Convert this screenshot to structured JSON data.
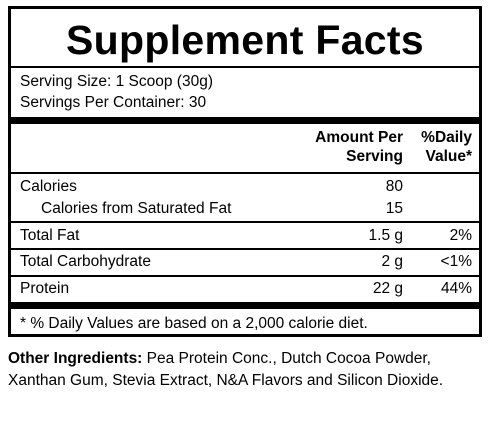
{
  "title": "Supplement Facts",
  "serving_size": "Serving Size: 1 Scoop (30g)",
  "servings_per_container": "Servings Per Container: 30",
  "header": {
    "amount_line1": "Amount Per",
    "amount_line2": "Serving",
    "dv_line1": "%Daily",
    "dv_line2": "Value*"
  },
  "rows": [
    {
      "name": "Calories",
      "amount": "80",
      "dv": ""
    },
    {
      "name": "Calories from Saturated Fat",
      "amount": "15",
      "dv": ""
    },
    {
      "name": "Total Fat",
      "amount": "1.5 g",
      "dv": "2%"
    },
    {
      "name": "Total Carbohydrate",
      "amount": "2 g",
      "dv": "<1%"
    },
    {
      "name": "Protein",
      "amount": "22 g",
      "dv": "44%"
    }
  ],
  "footnote": "* % Daily Values are based on a 2,000 calorie diet.",
  "ingredients": {
    "label": "Other Ingredients:",
    "text": " Pea Protein Conc., Dutch Cocoa Powder, Xanthan Gum, Stevia Extract, N&A Flavors and Silicon Dioxide."
  }
}
